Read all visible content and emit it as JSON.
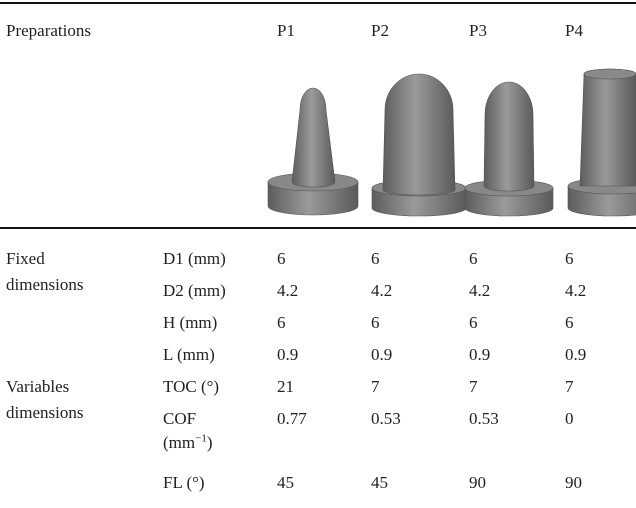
{
  "table": {
    "header": [
      "Preparations",
      "P1",
      "P2",
      "P3",
      "P4"
    ],
    "rows": [
      {
        "group": "Fixed dimensions",
        "param": "D1 (mm)",
        "values": [
          "6",
          "6",
          "6",
          "6"
        ]
      },
      {
        "param": "D2 (mm)",
        "values": [
          "4.2",
          "4.2",
          "4.2",
          "4.2"
        ]
      },
      {
        "param": "H (mm)",
        "values": [
          "6",
          "6",
          "6",
          "6"
        ]
      },
      {
        "param": "L (mm)",
        "values": [
          "0.9",
          "0.9",
          "0.9",
          "0.9"
        ]
      },
      {
        "group": "Variables dimensions",
        "param": "TOC (°)",
        "values": [
          "21",
          "7",
          "7",
          "7"
        ]
      },
      {
        "param": "COF",
        "unit": [
          "(mm",
          "−1",
          ")"
        ],
        "values": [
          "0.77",
          "0.53",
          "0.53",
          "0"
        ]
      },
      {
        "param": "FL (°)",
        "values": [
          "45",
          "45",
          "90",
          "90"
        ]
      }
    ]
  }
}
